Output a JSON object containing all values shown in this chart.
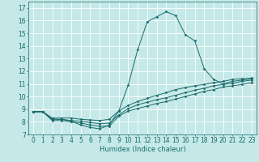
{
  "xlabel": "Humidex (Indice chaleur)",
  "ylabel": "",
  "xlim": [
    -0.5,
    23.5
  ],
  "ylim": [
    7,
    17.5
  ],
  "yticks": [
    7,
    8,
    9,
    10,
    11,
    12,
    13,
    14,
    15,
    16,
    17
  ],
  "xticks": [
    0,
    1,
    2,
    3,
    4,
    5,
    6,
    7,
    8,
    9,
    10,
    11,
    12,
    13,
    14,
    15,
    16,
    17,
    18,
    19,
    20,
    21,
    22,
    23
  ],
  "bg_color": "#c5e8e8",
  "line_color": "#1a6b6b",
  "grid_color": "#ffffff",
  "lines": [
    {
      "x": [
        0,
        1,
        2,
        3,
        4,
        5,
        6,
        7,
        8,
        9,
        10,
        11,
        12,
        13,
        14,
        15,
        16,
        17,
        18,
        19,
        20,
        21,
        22,
        23
      ],
      "y": [
        8.8,
        8.8,
        8.2,
        8.2,
        8.05,
        7.75,
        7.55,
        7.45,
        7.75,
        8.85,
        10.9,
        13.7,
        15.9,
        16.3,
        16.7,
        16.4,
        14.9,
        14.4,
        12.2,
        11.35,
        11.0,
        11.2,
        11.3,
        11.4
      ]
    },
    {
      "x": [
        0,
        1,
        2,
        3,
        4,
        5,
        6,
        7,
        8,
        9,
        10,
        11,
        12,
        13,
        14,
        15,
        16,
        17,
        18,
        19,
        20,
        21,
        22,
        23
      ],
      "y": [
        8.8,
        8.8,
        8.3,
        8.3,
        8.3,
        8.2,
        8.15,
        8.1,
        8.2,
        8.85,
        9.3,
        9.6,
        9.85,
        10.1,
        10.3,
        10.55,
        10.7,
        10.85,
        10.95,
        11.1,
        11.2,
        11.35,
        11.4,
        11.45
      ]
    },
    {
      "x": [
        0,
        1,
        2,
        3,
        4,
        5,
        6,
        7,
        8,
        9,
        10,
        11,
        12,
        13,
        14,
        15,
        16,
        17,
        18,
        19,
        20,
        21,
        22,
        23
      ],
      "y": [
        8.8,
        8.8,
        8.2,
        8.2,
        8.1,
        8.05,
        7.95,
        7.85,
        7.9,
        8.55,
        9.05,
        9.35,
        9.55,
        9.75,
        9.9,
        10.1,
        10.3,
        10.5,
        10.65,
        10.85,
        10.95,
        11.05,
        11.2,
        11.3
      ]
    },
    {
      "x": [
        0,
        1,
        2,
        3,
        4,
        5,
        6,
        7,
        8,
        9,
        10,
        11,
        12,
        13,
        14,
        15,
        16,
        17,
        18,
        19,
        20,
        21,
        22,
        23
      ],
      "y": [
        8.8,
        8.8,
        8.1,
        8.1,
        8.0,
        7.9,
        7.75,
        7.65,
        7.65,
        8.45,
        8.85,
        9.05,
        9.25,
        9.45,
        9.6,
        9.8,
        10.0,
        10.2,
        10.4,
        10.55,
        10.75,
        10.85,
        10.95,
        11.1
      ]
    }
  ],
  "marker": "D",
  "marker_size": 1.5,
  "linewidth": 0.7,
  "axis_fontsize": 6,
  "tick_fontsize": 5.5
}
